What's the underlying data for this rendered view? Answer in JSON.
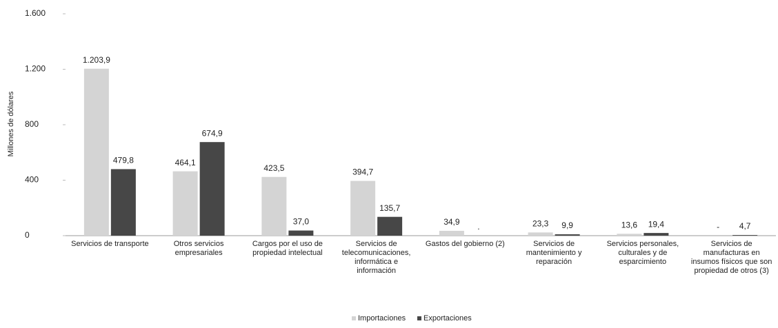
{
  "chart_data": {
    "type": "bar",
    "y_label": "Millones de dólares",
    "categories": [
      "Servicios de transporte",
      "Otros servicios empresariales",
      "Cargos por el uso de propiedad intelectual",
      "Servicios de telecomunicaciones, informática e información",
      "Gastos del gobierno (2)",
      "Servicios de mantenimiento y reparación",
      "Servicios personales, culturales y de esparcimiento",
      "Servicios de manufacturas en insumos físicos que son propiedad de otros (3)"
    ],
    "series": [
      {
        "name": "Importaciones",
        "color": "#d4d4d4",
        "values": [
          1203.9,
          464.1,
          423.5,
          394.7,
          34.9,
          23.3,
          13.6,
          null
        ],
        "value_labels": [
          "1.203,9",
          "464,1",
          "423,5",
          "394,7",
          "34,9",
          "23,3",
          "13,6",
          "-"
        ]
      },
      {
        "name": "Exportaciones",
        "color": "#474747",
        "values": [
          479.8,
          674.9,
          37.0,
          135.7,
          null,
          9.9,
          19.4,
          4.7
        ],
        "value_labels": [
          "479,8",
          "674,9",
          "37,0",
          "135,7",
          ".",
          "9,9",
          "19,4",
          "4,7"
        ]
      }
    ],
    "ylim": [
      0,
      1600
    ],
    "yticks": [
      0,
      400,
      800,
      {
        "value": 1200,
        "label": "1.200"
      },
      {
        "value": 1600,
        "label": "1.600"
      }
    ],
    "grid": false
  }
}
